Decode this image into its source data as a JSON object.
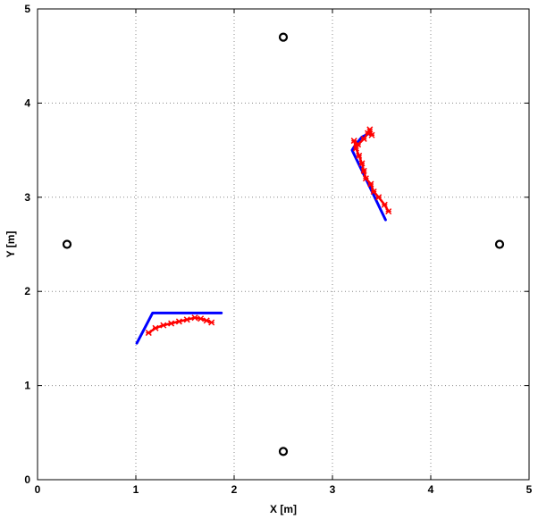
{
  "chart_data": {
    "type": "scatter",
    "title": "",
    "xlabel": "X [m]",
    "ylabel": "Y [m]",
    "xlim": [
      0,
      5
    ],
    "ylim": [
      0,
      5
    ],
    "xticks": [
      "0",
      "1",
      "2",
      "3",
      "4",
      "5"
    ],
    "yticks": [
      "0",
      "1",
      "2",
      "3",
      "4",
      "5"
    ],
    "grid": true,
    "grid_style": "dotted",
    "colors": {
      "reference": "#0000ff",
      "measured": "#ff0000",
      "beacon": "#000000",
      "grid": "#888888"
    },
    "beacons": [
      {
        "x": 2.5,
        "y": 4.7
      },
      {
        "x": 0.3,
        "y": 2.5
      },
      {
        "x": 4.7,
        "y": 2.5
      },
      {
        "x": 2.5,
        "y": 0.3
      }
    ],
    "paths": [
      {
        "style": "blue-line",
        "points": [
          [
            1.01,
            1.45
          ],
          [
            1.17,
            1.77
          ],
          [
            1.87,
            1.77
          ]
        ]
      },
      {
        "style": "red-cross",
        "points": [
          [
            1.13,
            1.56
          ],
          [
            1.2,
            1.61
          ],
          [
            1.28,
            1.64
          ],
          [
            1.36,
            1.66
          ],
          [
            1.44,
            1.68
          ],
          [
            1.52,
            1.7
          ],
          [
            1.6,
            1.72
          ],
          [
            1.66,
            1.71
          ],
          [
            1.72,
            1.69
          ],
          [
            1.77,
            1.67
          ]
        ]
      },
      {
        "style": "blue-line",
        "points": [
          [
            3.54,
            2.76
          ],
          [
            3.2,
            3.5
          ],
          [
            3.23,
            3.55
          ],
          [
            3.3,
            3.64
          ],
          [
            3.38,
            3.68
          ]
        ]
      },
      {
        "style": "red-cross",
        "points": [
          [
            3.57,
            2.85
          ],
          [
            3.53,
            2.92
          ],
          [
            3.47,
            3.0
          ],
          [
            3.42,
            3.06
          ],
          [
            3.39,
            3.14
          ],
          [
            3.34,
            3.2
          ],
          [
            3.32,
            3.28
          ],
          [
            3.3,
            3.36
          ],
          [
            3.27,
            3.44
          ],
          [
            3.24,
            3.52
          ],
          [
            3.22,
            3.6
          ],
          [
            3.26,
            3.56
          ],
          [
            3.32,
            3.62
          ],
          [
            3.36,
            3.68
          ],
          [
            3.38,
            3.72
          ],
          [
            3.4,
            3.66
          ]
        ]
      }
    ]
  }
}
